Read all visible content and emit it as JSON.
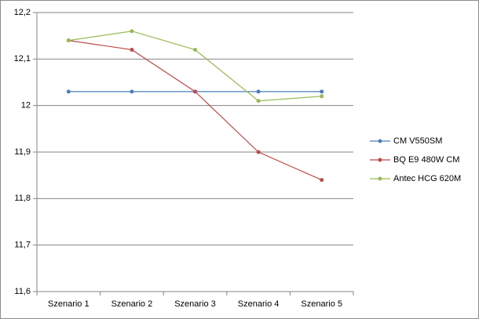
{
  "chart_data": {
    "type": "line",
    "categories": [
      "Szenario 1",
      "Szenario 2",
      "Szenario 3",
      "Szenario 4",
      "Szenario 5"
    ],
    "series": [
      {
        "name": "CM V550SM",
        "color": "#4a7ebb",
        "values": [
          12.03,
          12.03,
          12.03,
          12.03,
          12.03
        ]
      },
      {
        "name": "BQ E9  480W CM",
        "color": "#be4b48",
        "values": [
          12.14,
          12.12,
          12.03,
          11.9,
          11.84
        ]
      },
      {
        "name": "Antec HCG 620M",
        "color": "#98b954",
        "values": [
          12.14,
          12.16,
          12.12,
          12.01,
          12.02
        ]
      }
    ],
    "ylim": [
      11.6,
      12.2
    ],
    "yticks": [
      {
        "value": 11.6,
        "label": "11,6"
      },
      {
        "value": 11.7,
        "label": "11,7"
      },
      {
        "value": 11.8,
        "label": "11,8"
      },
      {
        "value": 11.9,
        "label": "11,9"
      },
      12,
      {
        "value": 12.1,
        "label": "12,1"
      },
      {
        "value": 12.2,
        "label": "12,2"
      }
    ],
    "grid": true,
    "legend": "right"
  }
}
